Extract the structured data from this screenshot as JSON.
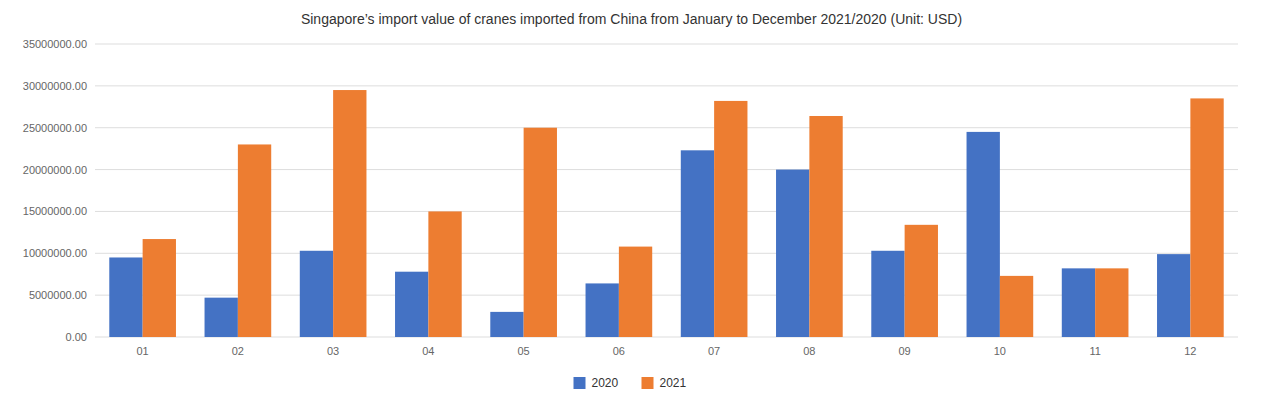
{
  "chart_data": {
    "type": "bar",
    "title": "Singapore’s import value of cranes imported from China from January to December 2021/2020 (Unit: USD)",
    "categories": [
      "01",
      "02",
      "03",
      "04",
      "05",
      "06",
      "07",
      "08",
      "09",
      "10",
      "11",
      "12"
    ],
    "series": [
      {
        "name": "2020",
        "color": "#4472c4",
        "values": [
          9500000,
          4700000,
          10300000,
          7800000,
          3000000,
          6400000,
          22300000,
          20000000,
          10300000,
          24500000,
          8200000,
          9900000
        ]
      },
      {
        "name": "2021",
        "color": "#ed7d31",
        "values": [
          11700000,
          23000000,
          29500000,
          15000000,
          25000000,
          10800000,
          28200000,
          26400000,
          13400000,
          7300000,
          8200000,
          28500000
        ]
      }
    ],
    "ylim": [
      0,
      35000000
    ],
    "yticks": [
      {
        "value": 0,
        "label": "0.00"
      },
      {
        "value": 5000000,
        "label": "5000000.00"
      },
      {
        "value": 10000000,
        "label": "10000000.00"
      },
      {
        "value": 15000000,
        "label": "15000000.00"
      },
      {
        "value": 20000000,
        "label": "20000000.00"
      },
      {
        "value": 25000000,
        "label": "25000000.00"
      },
      {
        "value": 30000000,
        "label": "30000000.00"
      },
      {
        "value": 35000000,
        "label": "35000000.00"
      }
    ],
    "grid": true,
    "legend": "bottom"
  }
}
